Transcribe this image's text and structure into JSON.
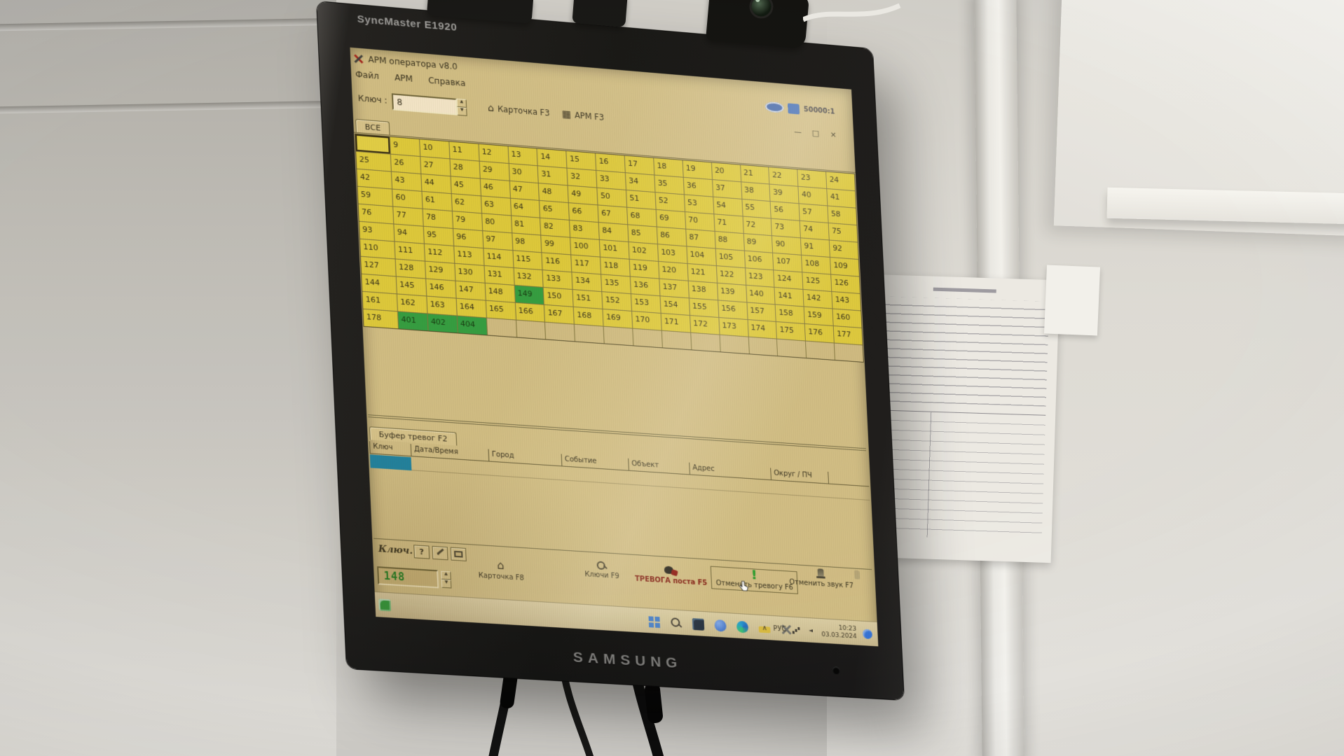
{
  "monitor": {
    "model": "SyncMaster E1920",
    "brand": "SAMSUNG"
  },
  "stickers": {
    "contrast": "50000:1"
  },
  "icons": {
    "help": "?",
    "house": "⌂",
    "grid": "▦",
    "up": "▲",
    "down": "▼",
    "minimize": "—",
    "maximize": "□",
    "close": "×",
    "chevron": "∧",
    "bang": "!"
  },
  "app": {
    "title": "АРМ оператора v8.0",
    "menu": [
      "Файл",
      "АРМ",
      "Справка"
    ],
    "toolbar": {
      "key_label": "Ключ :",
      "key_value": "8",
      "card_btn": "Карточка F3",
      "arm_btn": "АРМ F3"
    },
    "all_tab": "ВСЕ",
    "grid": {
      "green_cells": [
        "149",
        "401",
        "402",
        "404"
      ],
      "rows": [
        [
          "",
          "9",
          "10",
          "11",
          "12",
          "13",
          "14",
          "15",
          "16",
          "17",
          "18",
          "19",
          "20",
          "21",
          "22",
          "23",
          "24"
        ],
        [
          "25",
          "26",
          "27",
          "28",
          "29",
          "30",
          "31",
          "32",
          "33",
          "34",
          "35",
          "36",
          "37",
          "38",
          "39",
          "40",
          "41"
        ],
        [
          "42",
          "43",
          "44",
          "45",
          "46",
          "47",
          "48",
          "49",
          "50",
          "51",
          "52",
          "53",
          "54",
          "55",
          "56",
          "57",
          "58"
        ],
        [
          "59",
          "60",
          "61",
          "62",
          "63",
          "64",
          "65",
          "66",
          "67",
          "68",
          "69",
          "70",
          "71",
          "72",
          "73",
          "74",
          "75"
        ],
        [
          "76",
          "77",
          "78",
          "79",
          "80",
          "81",
          "82",
          "83",
          "84",
          "85",
          "86",
          "87",
          "88",
          "89",
          "90",
          "91",
          "92"
        ],
        [
          "93",
          "94",
          "95",
          "96",
          "97",
          "98",
          "99",
          "100",
          "101",
          "102",
          "103",
          "104",
          "105",
          "106",
          "107",
          "108",
          "109"
        ],
        [
          "110",
          "111",
          "112",
          "113",
          "114",
          "115",
          "116",
          "117",
          "118",
          "119",
          "120",
          "121",
          "122",
          "123",
          "124",
          "125",
          "126"
        ],
        [
          "127",
          "128",
          "129",
          "130",
          "131",
          "132",
          "133",
          "134",
          "135",
          "136",
          "137",
          "138",
          "139",
          "140",
          "141",
          "142",
          "143"
        ],
        [
          "144",
          "145",
          "146",
          "147",
          "148",
          "149",
          "150",
          "151",
          "152",
          "153",
          "154",
          "155",
          "156",
          "157",
          "158",
          "159",
          "160"
        ],
        [
          "161",
          "162",
          "163",
          "164",
          "165",
          "166",
          "167",
          "168",
          "169",
          "170",
          "171",
          "172",
          "173",
          "174",
          "175",
          "176",
          "177"
        ],
        [
          "178",
          "401",
          "402",
          "404",
          "",
          "",
          "",
          "",
          "",
          "",
          "",
          "",
          "",
          "",
          "",
          "",
          ""
        ]
      ]
    },
    "alarm_buffer": {
      "tab": "Буфер тревог F2",
      "columns": [
        "Ключ",
        "Дата/Время",
        "Город",
        "Событие",
        "Объект",
        "Адрес",
        "Округ / ПЧ"
      ]
    },
    "bottom_toolbar": {
      "key_label": "Ключ.",
      "key_value": "148",
      "card_btn": "Карточка F8",
      "keys_btn": "Ключи F9",
      "alarm_btn": "ТРЕВОГА поста F5",
      "cancel_alarm_btn": "Отменить тревогу F6",
      "cancel_sound_btn": "Отменить звук F7"
    },
    "taskbar": {
      "lang": "РУС",
      "time": "10:23",
      "date": "03.03.2024"
    }
  },
  "colors": {
    "grid_yellow": "#dcc837",
    "cell_green": "#2f9b3d",
    "selected_teal": "#1a80a0",
    "alarm_red": "#7e150c",
    "led_green": "#1f7d22",
    "screen_beige": "#cfbb82"
  }
}
